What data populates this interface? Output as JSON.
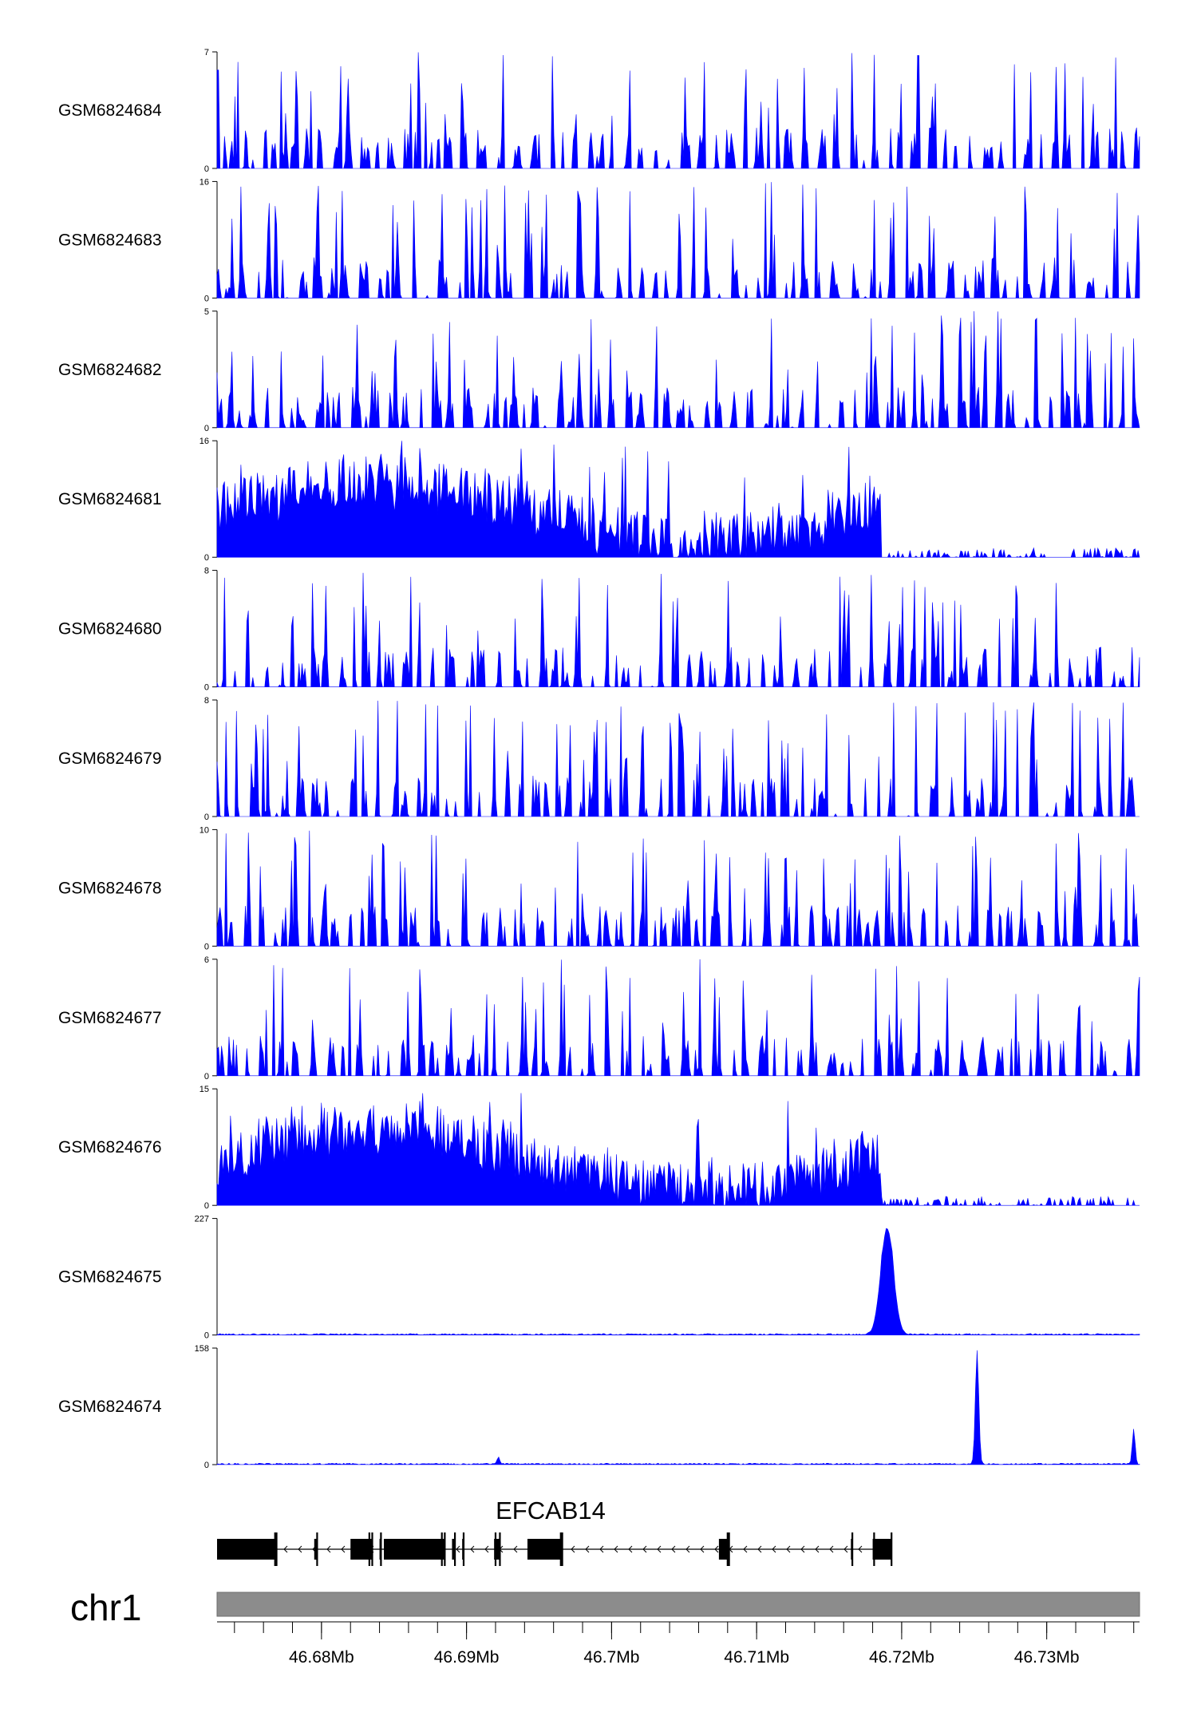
{
  "chart_data": {
    "type": "area",
    "title": "",
    "chromosome": "chr1",
    "xlim_mb": [
      46.6728,
      46.7364
    ],
    "x_ticks": [
      "46.68Mb",
      "46.69Mb",
      "46.7Mb",
      "46.71Mb",
      "46.72Mb",
      "46.73Mb"
    ],
    "x_tick_values_mb": [
      46.68,
      46.69,
      46.7,
      46.71,
      46.72,
      46.73
    ],
    "series_color": "#0000ff",
    "gene": {
      "name": "EFCAB14",
      "strand": "-",
      "exons_mb": [
        [
          46.6728,
          46.6768
        ],
        [
          46.6768,
          46.6769
        ],
        [
          46.6795,
          46.6797
        ],
        [
          46.682,
          46.6833
        ],
        [
          46.6833,
          46.6835
        ],
        [
          46.684,
          46.6841
        ],
        [
          46.6843,
          46.6883
        ],
        [
          46.6883,
          46.6885
        ],
        [
          46.689,
          46.6892
        ],
        [
          46.6897,
          46.6898
        ],
        [
          46.6919,
          46.692
        ],
        [
          46.692,
          46.6923
        ],
        [
          46.6942,
          46.6965
        ],
        [
          46.6965,
          46.6966
        ],
        [
          46.7074,
          46.708
        ],
        [
          46.708,
          46.7081
        ],
        [
          46.7165,
          46.7166
        ],
        [
          46.718,
          46.7181
        ],
        [
          46.7181,
          46.7193
        ]
      ]
    },
    "tracks": [
      {
        "name": "GSM6824684",
        "ymax": 7,
        "profile": "sparse_peaks",
        "seed": 11
      },
      {
        "name": "GSM6824683",
        "ymax": 16,
        "profile": "sparse_peaks",
        "seed": 23
      },
      {
        "name": "GSM6824682",
        "ymax": 5,
        "profile": "sparse_peaks",
        "seed": 37
      },
      {
        "name": "GSM6824681",
        "ymax": 16,
        "profile": "dense_left",
        "seed": 41
      },
      {
        "name": "GSM6824680",
        "ymax": 8,
        "profile": "sparse_peaks",
        "seed": 53
      },
      {
        "name": "GSM6824679",
        "ymax": 8,
        "profile": "sparse_peaks",
        "seed": 67
      },
      {
        "name": "GSM6824678",
        "ymax": 10,
        "profile": "sparse_peaks",
        "seed": 71
      },
      {
        "name": "GSM6824677",
        "ymax": 6,
        "profile": "sparse_peaks",
        "seed": 83
      },
      {
        "name": "GSM6824676",
        "ymax": 15,
        "profile": "dense_left",
        "seed": 97
      },
      {
        "name": "GSM6824675",
        "ymax": 227,
        "profile": "single_peak",
        "seed": 101,
        "peaks": [
          {
            "pos_mb": 46.719,
            "height": 227,
            "width_mb": 0.0009
          }
        ]
      },
      {
        "name": "GSM6824674",
        "ymax": 158,
        "profile": "single_peak",
        "seed": 113,
        "peaks": [
          {
            "pos_mb": 46.7252,
            "height": 158,
            "width_mb": 0.00025
          },
          {
            "pos_mb": 46.6922,
            "height": 10,
            "width_mb": 0.0002
          },
          {
            "pos_mb": 46.736,
            "height": 50,
            "width_mb": 0.0002
          }
        ]
      }
    ]
  }
}
